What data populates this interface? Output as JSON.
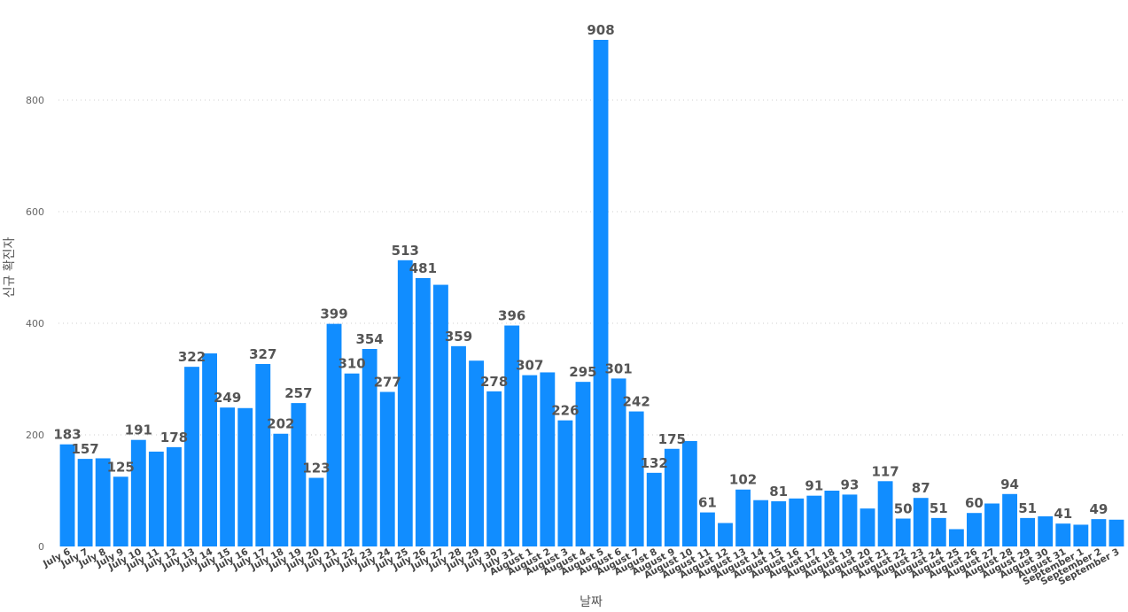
{
  "chart_data": {
    "type": "bar",
    "title": "",
    "xlabel": "날짜",
    "ylabel": "신규 확진자",
    "ylim": [
      0,
      908
    ],
    "yticks": [
      0,
      200,
      400,
      600,
      800
    ],
    "grid": true,
    "bar_color": "#118dff",
    "categories": [
      "July 6",
      "July 7",
      "July 8",
      "July 9",
      "July 10",
      "July 11",
      "July 12",
      "July 13",
      "July 14",
      "July 15",
      "July 16",
      "July 17",
      "July 18",
      "July 19",
      "July 20",
      "July 21",
      "July 22",
      "July 23",
      "July 24",
      "July 25",
      "July 26",
      "July 27",
      "July 28",
      "July 29",
      "July 30",
      "July 31",
      "August 1",
      "August 2",
      "August 3",
      "August 4",
      "August 5",
      "August 6",
      "August 7",
      "August 8",
      "August 9",
      "August 10",
      "August 11",
      "August 12",
      "August 13",
      "August 14",
      "August 15",
      "August 16",
      "August 17",
      "August 18",
      "August 19",
      "August 20",
      "August 21",
      "August 22",
      "August 23",
      "August 24",
      "August 25",
      "August 26",
      "August 27",
      "August 28",
      "August 29",
      "August 30",
      "August 31",
      "September 1",
      "September 2",
      "September 3"
    ],
    "values": [
      183,
      157,
      158,
      125,
      191,
      170,
      178,
      322,
      346,
      249,
      248,
      327,
      202,
      257,
      123,
      399,
      310,
      354,
      277,
      513,
      481,
      469,
      359,
      333,
      278,
      396,
      307,
      312,
      226,
      295,
      908,
      301,
      242,
      132,
      175,
      189,
      61,
      42,
      102,
      83,
      81,
      86,
      91,
      100,
      93,
      68,
      117,
      50,
      87,
      51,
      31,
      60,
      77,
      94,
      51,
      54,
      41,
      39,
      49,
      48
    ],
    "data_labels": [
      {
        "index": 0,
        "text": "183"
      },
      {
        "index": 1,
        "text": "157"
      },
      {
        "index": 3,
        "text": "125"
      },
      {
        "index": 4,
        "text": "191"
      },
      {
        "index": 6,
        "text": "178"
      },
      {
        "index": 7,
        "text": "322"
      },
      {
        "index": 9,
        "text": "249"
      },
      {
        "index": 11,
        "text": "327"
      },
      {
        "index": 12,
        "text": "202"
      },
      {
        "index": 13,
        "text": "257"
      },
      {
        "index": 14,
        "text": "123"
      },
      {
        "index": 15,
        "text": "399"
      },
      {
        "index": 16,
        "text": "310"
      },
      {
        "index": 17,
        "text": "354"
      },
      {
        "index": 18,
        "text": "277"
      },
      {
        "index": 19,
        "text": "513"
      },
      {
        "index": 20,
        "text": "481"
      },
      {
        "index": 22,
        "text": "359"
      },
      {
        "index": 24,
        "text": "278"
      },
      {
        "index": 25,
        "text": "396"
      },
      {
        "index": 26,
        "text": "307"
      },
      {
        "index": 28,
        "text": "226"
      },
      {
        "index": 29,
        "text": "295"
      },
      {
        "index": 30,
        "text": "908"
      },
      {
        "index": 31,
        "text": "301"
      },
      {
        "index": 32,
        "text": "242"
      },
      {
        "index": 33,
        "text": "132"
      },
      {
        "index": 34,
        "text": "175"
      },
      {
        "index": 36,
        "text": "61"
      },
      {
        "index": 38,
        "text": "102"
      },
      {
        "index": 40,
        "text": "81"
      },
      {
        "index": 42,
        "text": "91"
      },
      {
        "index": 44,
        "text": "93"
      },
      {
        "index": 46,
        "text": "117"
      },
      {
        "index": 47,
        "text": "50"
      },
      {
        "index": 48,
        "text": "87"
      },
      {
        "index": 49,
        "text": "51"
      },
      {
        "index": 51,
        "text": "60"
      },
      {
        "index": 53,
        "text": "94"
      },
      {
        "index": 54,
        "text": "51"
      },
      {
        "index": 56,
        "text": "41"
      },
      {
        "index": 58,
        "text": "49"
      }
    ]
  }
}
